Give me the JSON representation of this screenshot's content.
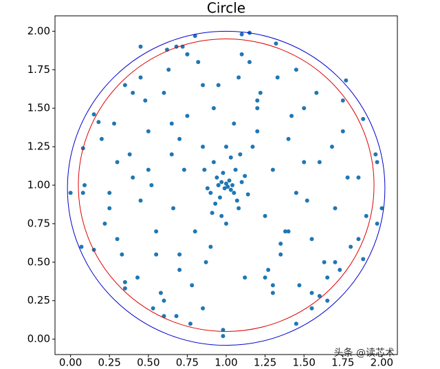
{
  "chart_data": {
    "type": "scatter",
    "title": "Circle",
    "color": "#1f77b4",
    "x": [
      0.0,
      0.08,
      0.07,
      0.15,
      0.18,
      0.15,
      0.35,
      0.35,
      0.62,
      0.68,
      0.72,
      0.8,
      1.1,
      1.15,
      1.32,
      1.77,
      1.88,
      1.96,
      1.97,
      2.0,
      1.97,
      1.88,
      1.65,
      1.55,
      0.98,
      0.98,
      0.77,
      0.68,
      0.53,
      0.08,
      0.09,
      0.2,
      0.25,
      0.3,
      0.4,
      0.45,
      0.5,
      0.55,
      0.6,
      0.65,
      0.7,
      0.75,
      0.85,
      0.9,
      0.95,
      1.05,
      1.2,
      1.25,
      1.3,
      1.35,
      1.4,
      1.45,
      1.5,
      1.55,
      1.6,
      1.7,
      1.75,
      1.8,
      1.85,
      1.9,
      0.22,
      0.28,
      0.33,
      0.38,
      0.43,
      0.48,
      0.52,
      0.58,
      0.63,
      0.66,
      0.73,
      0.78,
      0.82,
      0.87,
      0.92,
      1.08,
      1.12,
      1.17,
      1.22,
      1.27,
      1.33,
      1.38,
      1.42,
      1.47,
      1.52,
      1.58,
      1.63,
      1.68,
      1.73,
      1.78,
      0.95,
      0.97,
      0.99,
      1.0,
      1.01,
      1.02,
      1.03,
      1.04,
      0.96,
      0.98,
      1.05,
      0.94,
      1.06,
      0.93,
      1.07,
      0.9,
      1.1,
      0.92,
      1.08,
      0.88,
      1.12,
      0.91,
      1.09,
      0.86,
      1.14,
      0.97,
      1.03,
      1.0,
      1.0,
      0.95,
      0.3,
      0.45,
      0.6,
      0.75,
      0.85,
      1.15,
      1.3,
      1.45,
      1.6,
      1.75,
      0.4,
      0.55,
      0.7,
      0.8,
      1.2,
      1.35,
      1.5,
      1.65,
      0.25,
      0.5,
      0.65,
      1.4,
      1.7,
      1.85,
      0.35,
      0.75,
      1.25,
      1.55,
      0.45,
      0.6,
      1.1,
      1.45,
      0.85,
      1.3,
      0.7,
      1.2
    ],
    "values": [
      0.95,
      1.24,
      0.6,
      1.46,
      1.41,
      0.58,
      0.37,
      0.33,
      1.88,
      1.9,
      1.9,
      1.97,
      1.98,
      1.99,
      1.92,
      1.68,
      1.43,
      1.2,
      1.15,
      0.85,
      0.75,
      0.52,
      0.25,
      0.2,
      0.02,
      0.06,
      0.1,
      0.15,
      0.2,
      0.95,
      1.0,
      1.3,
      0.85,
      1.15,
      1.05,
      0.9,
      1.35,
      0.7,
      1.6,
      1.2,
      0.45,
      1.45,
      1.25,
      0.6,
      1.65,
      1.4,
      1.55,
      0.8,
      1.1,
      0.55,
      1.3,
      0.95,
      1.5,
      0.65,
      1.15,
      0.85,
      1.35,
      0.6,
      1.05,
      0.8,
      0.75,
      1.4,
      0.55,
      1.2,
      0.4,
      1.55,
      1.0,
      0.3,
      1.75,
      0.85,
      1.1,
      0.35,
      1.8,
      0.5,
      1.5,
      1.7,
      0.4,
      1.25,
      1.6,
      0.45,
      1.7,
      0.7,
      1.45,
      0.35,
      0.9,
      1.6,
      0.5,
      1.25,
      0.45,
      1.05,
      1.0,
      1.02,
      0.98,
      1.01,
      0.99,
      1.03,
      0.97,
      1.0,
      0.92,
      1.08,
      0.95,
      1.05,
      1.1,
      0.88,
      0.9,
      0.95,
      1.02,
      1.15,
      0.85,
      0.98,
      1.06,
      0.82,
      1.2,
      1.1,
      0.94,
      0.8,
      1.18,
      1.25,
      0.75,
      1.0,
      0.65,
      1.7,
      0.25,
      1.85,
      0.2,
      1.8,
      0.3,
      1.75,
      0.28,
      1.55,
      1.6,
      0.55,
      1.3,
      0.7,
      1.35,
      0.62,
      1.15,
      0.4,
      0.95,
      1.1,
      1.4,
      0.7,
      0.5,
      0.65,
      1.65,
      1.85,
      0.4,
      0.3,
      1.9,
      0.15,
      1.85,
      0.1,
      1.65,
      0.35,
      0.55,
      1.5
    ],
    "circles": [
      {
        "center": [
          1.0,
          0.98
        ],
        "radius": 1.02,
        "color": "#0000cc"
      },
      {
        "center": [
          1.0,
          1.0
        ],
        "radius": 0.95,
        "color": "#dd0000"
      }
    ],
    "xlim": [
      -0.1,
      2.1
    ],
    "ylim": [
      -0.1,
      2.1
    ],
    "xticks": [
      {
        "value": 0,
        "label": "0.00"
      },
      {
        "value": 0.25,
        "label": "0.25"
      },
      {
        "value": 0.5,
        "label": "0.50"
      },
      {
        "value": 0.75,
        "label": "0.75"
      },
      {
        "value": 1,
        "label": "1.00"
      },
      {
        "value": 1.25,
        "label": "1.25"
      },
      {
        "value": 1.5,
        "label": "1.50"
      },
      {
        "value": 1.75,
        "label": "1.75"
      },
      {
        "value": 2,
        "label": "2.00"
      }
    ],
    "yticks": [
      {
        "value": 0,
        "label": "0.00"
      },
      {
        "value": 0.25,
        "label": "0.25"
      },
      {
        "value": 0.5,
        "label": "0.50"
      },
      {
        "value": 0.75,
        "label": "0.75"
      },
      {
        "value": 1,
        "label": "1.00"
      },
      {
        "value": 1.25,
        "label": "1.25"
      },
      {
        "value": 1.5,
        "label": "1.50"
      },
      {
        "value": 1.75,
        "label": "1.75"
      },
      {
        "value": 2,
        "label": "2.00"
      }
    ],
    "watermark": "头条 @读芯术"
  }
}
